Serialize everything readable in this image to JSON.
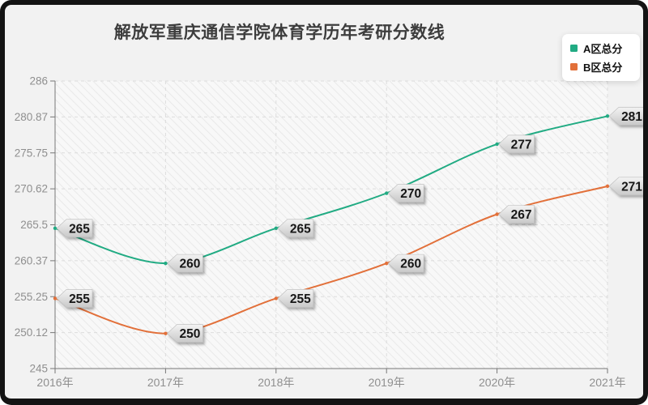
{
  "frame": {
    "background": "#f2f2f2",
    "border_color": "#141414"
  },
  "chart_data": {
    "type": "line",
    "title": "解放军重庆通信学院体育学历年考研分数线",
    "categories": [
      "2016年",
      "2017年",
      "2018年",
      "2019年",
      "2020年",
      "2021年"
    ],
    "series": [
      {
        "name": "A区总分",
        "color": "#21ab83",
        "values": [
          265,
          260,
          265,
          270,
          277,
          281
        ]
      },
      {
        "name": "B区总分",
        "color": "#e2703a",
        "values": [
          255,
          250,
          255,
          260,
          267,
          271
        ]
      }
    ],
    "ylim": [
      245,
      286
    ],
    "y_tick_values": [
      245,
      250.125,
      255.25,
      260.375,
      265.5,
      270.625,
      275.75,
      280.875,
      286
    ],
    "y_tick_labels": [
      "245",
      "250.12",
      "255.25",
      "260.37",
      "265.5",
      "270.62",
      "275.75",
      "280.87",
      "286"
    ],
    "grid": "dashed",
    "plot_background": "hatched",
    "legend_position": "top-right",
    "smooth": true,
    "point_label_style": "gray-tag",
    "axis_color": "#777777",
    "axis_label_color": "#8f8f8f",
    "gridline_color": "#dcdcdc",
    "tag_text_color": "#161616"
  }
}
